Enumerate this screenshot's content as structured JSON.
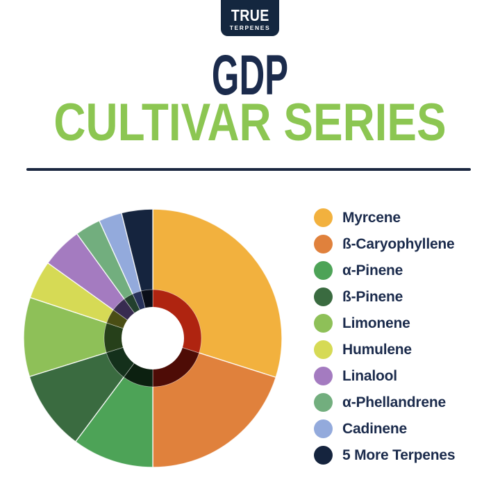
{
  "logo": {
    "line1": "TRUE",
    "line2": "TERPENES",
    "badge_color": "#14273F",
    "text_color": "#FFFFFF"
  },
  "title": {
    "line1": "GDP",
    "line2": "CULTIVAR SERIES",
    "line1_color": "#1B2B4C",
    "line2_color": "#8CC652"
  },
  "divider_color": "#1B2740",
  "legend": {
    "text_color": "#1B2B4C"
  },
  "chart_data": {
    "type": "pie",
    "title": "GDP CULTIVAR SERIES",
    "donut": true,
    "start_angle_deg": 0,
    "direction": "clockwise",
    "legend_position": "right",
    "values_shown": false,
    "hole_color": "#FFFFFF",
    "slices": [
      {
        "label": "Myrcene",
        "pct": 29.9,
        "color": "#F2B13E",
        "ring_color": "#AF2410"
      },
      {
        "label": "ß-Caryophyllene",
        "pct": 20.1,
        "color": "#E0813C",
        "ring_color": "#4E0C06"
      },
      {
        "label": "α-Pinene",
        "pct": 10.2,
        "color": "#4DA357",
        "ring_color": "#0C2010"
      },
      {
        "label": "ß-Pinene",
        "pct": 10.0,
        "color": "#3A6B40",
        "ring_color": "#14301B"
      },
      {
        "label": "Limonene",
        "pct": 9.9,
        "color": "#8EC058",
        "ring_color": "#26401A"
      },
      {
        "label": "Humulene",
        "pct": 4.8,
        "color": "#D6DA55",
        "ring_color": "#4A4E14"
      },
      {
        "label": "Linalool",
        "pct": 5.1,
        "color": "#A47BC0",
        "ring_color": "#382B50"
      },
      {
        "label": "α-Phellandrene",
        "pct": 3.2,
        "color": "#72AE7E",
        "ring_color": "#23402E"
      },
      {
        "label": "Cadinene",
        "pct": 2.9,
        "color": "#93AADC",
        "ring_color": "#27315A"
      },
      {
        "label": "5 More Terpenes",
        "pct": 3.9,
        "color": "#15243E",
        "ring_color": "#0A0E18"
      }
    ]
  }
}
